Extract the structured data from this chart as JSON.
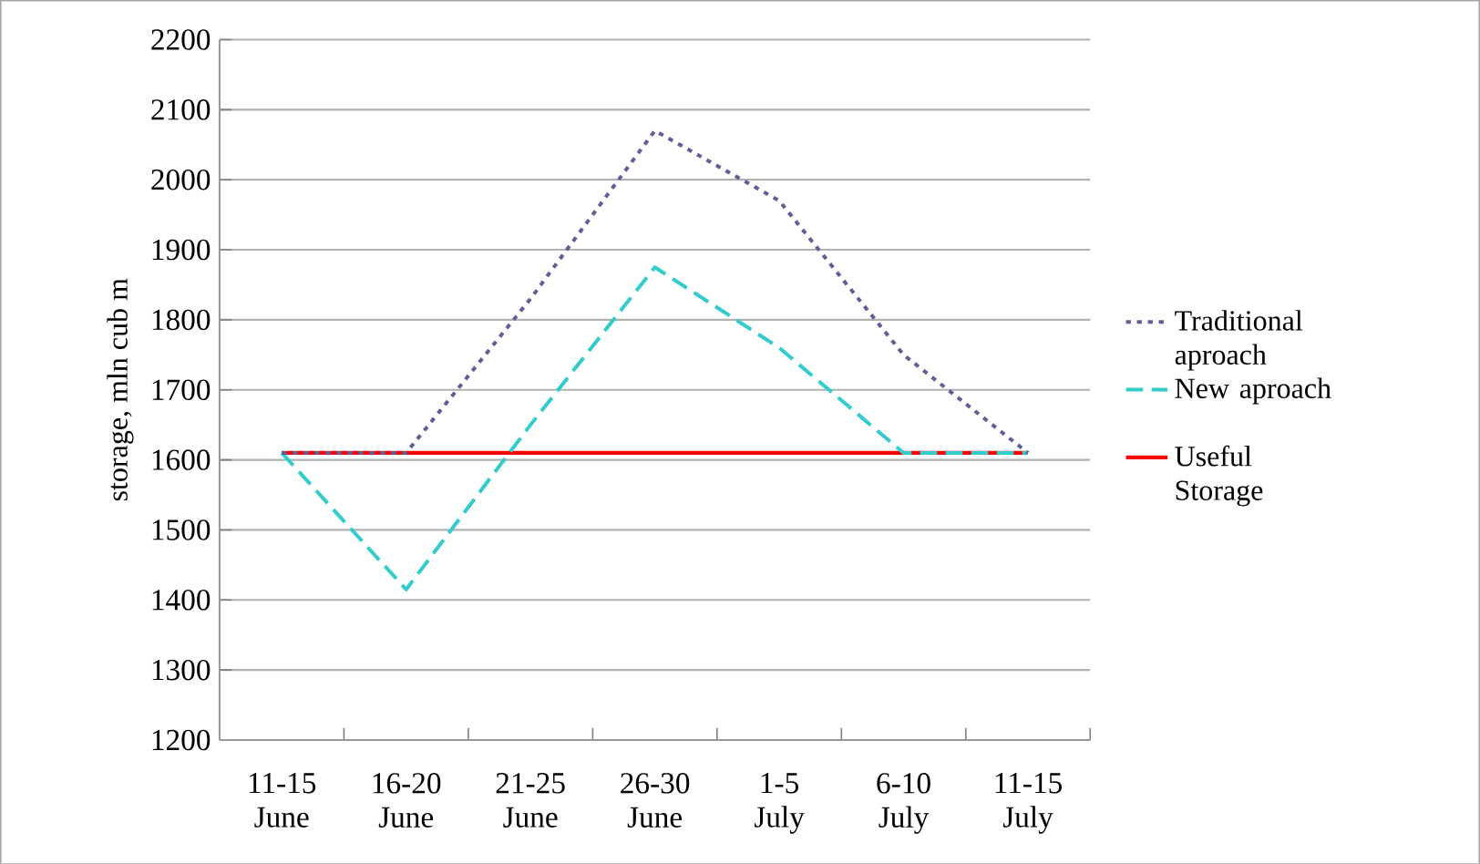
{
  "chart_data": {
    "type": "line",
    "ylabel": "storage, mln cub m",
    "categories": [
      "11-15 June",
      "16-20 June",
      "21-25 June",
      "26-30 June",
      "1-5 July",
      "6-10 July",
      "11-15 July"
    ],
    "series": [
      {
        "name": "Traditional aproach",
        "color": "#5f5f96",
        "line_style": "dotted",
        "values": [
          1610,
          1610,
          1830,
          2070,
          1970,
          1750,
          1610
        ]
      },
      {
        "name": "New aproach",
        "color": "#33cccc",
        "line_style": "dashed",
        "values": [
          1610,
          1415,
          1650,
          1875,
          1760,
          1610,
          1610
        ]
      },
      {
        "name": "Useful Storage",
        "color": "#ff0000",
        "line_style": "solid",
        "values": [
          1610,
          1610,
          1610,
          1610,
          1610,
          1610,
          1610
        ]
      }
    ],
    "ylim": [
      1200,
      2200
    ],
    "yticks": [
      1200,
      1300,
      1400,
      1500,
      1600,
      1700,
      1800,
      1900,
      2000,
      2100,
      2200
    ],
    "grid": "y",
    "legend": "right",
    "marker": "none"
  }
}
